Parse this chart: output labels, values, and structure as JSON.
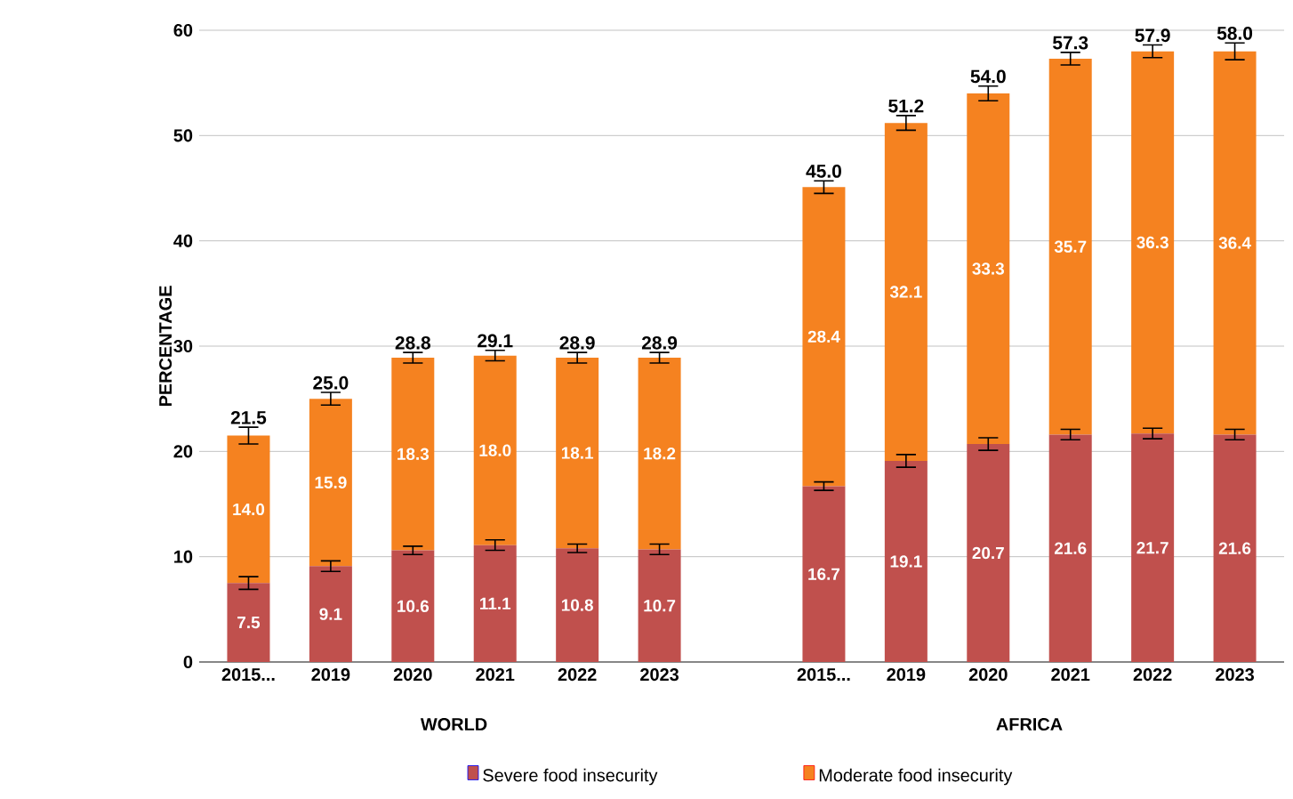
{
  "chart_data": {
    "type": "bar",
    "stacked": true,
    "ylabel": "PERCENTAGE",
    "categories": [
      "2015...",
      "2019",
      "2020",
      "2021",
      "2022",
      "2023",
      null,
      "2015...",
      "2019",
      "2020",
      "2021",
      "2022",
      "2023"
    ],
    "series": [
      {
        "name": "Severe food insecurity",
        "color": "#c0504d",
        "values": [
          7.5,
          9.1,
          10.6,
          11.1,
          10.8,
          10.7,
          null,
          16.7,
          19.1,
          20.7,
          21.6,
          21.7,
          21.6
        ],
        "errors": [
          0.6,
          0.5,
          0.4,
          0.5,
          0.4,
          0.5,
          null,
          0.4,
          0.6,
          0.6,
          0.5,
          0.5,
          0.5
        ],
        "value_labels": [
          "7.5",
          "9.1",
          "10.6",
          "11.1",
          "10.8",
          "10.7",
          null,
          "16.7",
          "19.1",
          "20.7",
          "21.6",
          "21.7",
          "21.6"
        ]
      },
      {
        "name": "Moderate food insecurity",
        "color": "#f58220",
        "values": [
          14.0,
          15.9,
          18.3,
          18.0,
          18.1,
          18.2,
          null,
          28.4,
          32.1,
          33.3,
          35.7,
          36.3,
          36.4
        ],
        "errors": [
          0.8,
          0.6,
          0.5,
          0.5,
          0.5,
          0.5,
          null,
          0.6,
          0.7,
          0.7,
          0.6,
          0.6,
          0.8
        ],
        "value_labels": [
          "14.0",
          "15.9",
          "18.3",
          "18.0",
          "18.1",
          "18.2",
          null,
          "28.4",
          "32.1",
          "33.3",
          "35.7",
          "36.3",
          "36.4"
        ]
      }
    ],
    "totals": [
      "21.5",
      "25.0",
      "28.8",
      "29.1",
      "28.9",
      "28.9",
      null,
      "45.0",
      "51.2",
      "54.0",
      "57.3",
      "57.9",
      "58.0"
    ],
    "ylim": [
      0,
      60
    ],
    "yticks": [
      0,
      10,
      20,
      30,
      40,
      50,
      60
    ],
    "grid": "y",
    "legend": "bottom",
    "annotations": [
      "WORLD",
      "AFRICA"
    ]
  }
}
